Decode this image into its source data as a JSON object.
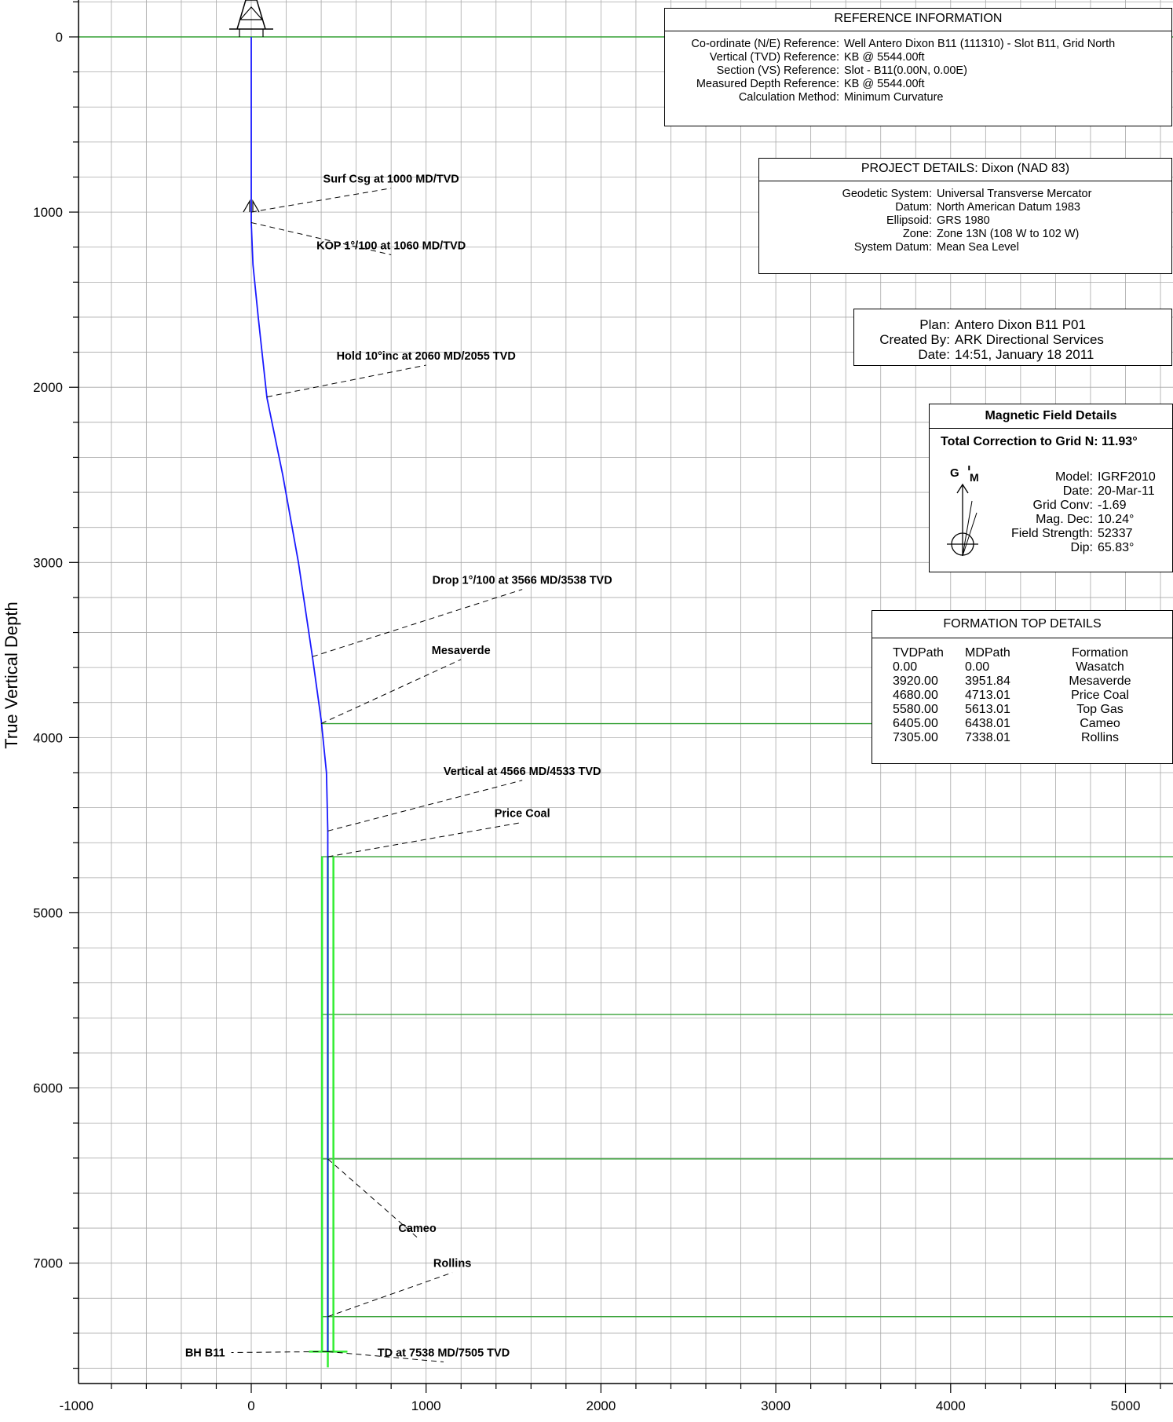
{
  "chart_data": {
    "type": "line",
    "ylabel": "True Vertical Depth",
    "xlabel": "",
    "xlim": [
      -1000,
      5280
    ],
    "ylim": [
      -200,
      7750
    ],
    "y_inverted": true,
    "x_ticks": [
      "-1000",
      "0",
      "1000",
      "2000",
      "3000",
      "4000",
      "5000"
    ],
    "y_ticks": [
      "0",
      "1000",
      "2000",
      "3000",
      "4000",
      "5000",
      "6000",
      "7000"
    ],
    "grid": true,
    "series": [
      {
        "name": "",
        "color": "#1a1aff",
        "points": [
          [
            0,
            0
          ],
          [
            0,
            1060
          ],
          [
            10,
            1300
          ],
          [
            40,
            1600
          ],
          [
            90,
            2060
          ],
          [
            180,
            2500
          ],
          [
            270,
            3000
          ],
          [
            350,
            3538
          ],
          [
            400,
            3900
          ],
          [
            430,
            4200
          ],
          [
            438,
            4533
          ],
          [
            438,
            7505
          ]
        ]
      }
    ],
    "formation_lines_tvd": [
      3920,
      4680,
      5580,
      6405,
      7305
    ],
    "annotations": [
      {
        "text": "Surf Csg at 1000 MD/TVD",
        "point": [
          0,
          1000
        ],
        "label_at": [
          800,
          810
        ]
      },
      {
        "text": "KOP 1°/100 at 1060 MD/TVD",
        "point": [
          0,
          1060
        ],
        "label_at": [
          800,
          1190
        ]
      },
      {
        "text": "Hold 10°inc at 2060 MD/2055 TVD",
        "point": [
          90,
          2055
        ],
        "label_at": [
          1000,
          1820
        ]
      },
      {
        "text": "Drop 1°/100 at 3566 MD/3538 TVD",
        "point": [
          350,
          3538
        ],
        "label_at": [
          1550,
          3100
        ]
      },
      {
        "text": "Mesaverde",
        "point": [
          400,
          3920
        ],
        "label_at": [
          1200,
          3500
        ]
      },
      {
        "text": "Vertical at 4566 MD/4533 TVD",
        "point": [
          438,
          4533
        ],
        "label_at": [
          1550,
          4190
        ]
      },
      {
        "text": "Price Coal",
        "point": [
          438,
          4680
        ],
        "label_at": [
          1550,
          4430
        ]
      },
      {
        "text": "Cameo",
        "point": [
          438,
          6405
        ],
        "label_at": [
          950,
          6800
        ]
      },
      {
        "text": "Rollins",
        "point": [
          438,
          7305
        ],
        "label_at": [
          1150,
          7000
        ]
      },
      {
        "text": "BH B11",
        "point": [
          438,
          7505
        ],
        "label_at": [
          -150,
          7510
        ]
      },
      {
        "text": "TD at 7538 MD/7505 TVD",
        "point": [
          438,
          7505
        ],
        "label_at": [
          1100,
          7510
        ]
      }
    ]
  },
  "reference": {
    "title": "REFERENCE INFORMATION",
    "rows": [
      {
        "k": "Co-ordinate (N/E) Reference:",
        "v": "Well Antero Dixon B11 (111310) - Slot B11, Grid North"
      },
      {
        "k": "Vertical (TVD) Reference:",
        "v": "KB @ 5544.00ft"
      },
      {
        "k": "Section (VS) Reference:",
        "v": "Slot - B11(0.00N, 0.00E)"
      },
      {
        "k": "Measured Depth Reference:",
        "v": "KB @ 5544.00ft"
      },
      {
        "k": "Calculation Method:",
        "v": "Minimum Curvature"
      }
    ]
  },
  "project": {
    "title_prefix": "PROJECT DETAILS:",
    "title_value": "Dixon (NAD 83)",
    "rows": [
      {
        "k": "Geodetic System:",
        "v": "Universal Transverse Mercator"
      },
      {
        "k": "Datum:",
        "v": "North American Datum 1983"
      },
      {
        "k": "Ellipsoid:",
        "v": "GRS 1980"
      },
      {
        "k": "Zone:",
        "v": "Zone 13N (108 W to 102 W)"
      },
      {
        "k": "System Datum:",
        "v": "Mean Sea Level"
      }
    ]
  },
  "plan": {
    "rows": [
      {
        "k": "Plan:",
        "v": "Antero Dixon B11 P01"
      },
      {
        "k": "Created By:",
        "v": "ARK Directional Services"
      },
      {
        "k": "Date:",
        "v": "14:51, January 18 2011"
      }
    ]
  },
  "magnetic": {
    "title": "Magnetic Field Details",
    "correction": "Total Correction to Grid N: 11.93°",
    "icon_labels": {
      "g": "G",
      "t": "T",
      "m": "M"
    },
    "rows": [
      {
        "k": "Model:",
        "v": "IGRF2010"
      },
      {
        "k": "Date:",
        "v": "20-Mar-11"
      },
      {
        "k": "Grid Conv:",
        "v": "-1.69"
      },
      {
        "k": "Mag. Dec:",
        "v": "10.24°"
      },
      {
        "k": "Field Strength:",
        "v": "52337"
      },
      {
        "k": "Dip:",
        "v": "65.83°"
      }
    ]
  },
  "formations": {
    "title": "FORMATION TOP DETAILS",
    "headers": [
      "TVDPath",
      "MDPath",
      "Formation"
    ],
    "rows": [
      [
        "0.00",
        "0.00",
        "Wasatch"
      ],
      [
        "3920.00",
        "3951.84",
        "Mesaverde"
      ],
      [
        "4680.00",
        "4713.01",
        "Price Coal"
      ],
      [
        "5580.00",
        "5613.01",
        "Top Gas"
      ],
      [
        "6405.00",
        "6438.01",
        "Cameo"
      ],
      [
        "7305.00",
        "7338.01",
        "Rollins"
      ]
    ]
  },
  "colors": {
    "grid": "#a8a8a8",
    "formation_line": "#35a035",
    "wellpath": "#1a1aff",
    "casing": "#33ee33",
    "leader": "#000000"
  }
}
